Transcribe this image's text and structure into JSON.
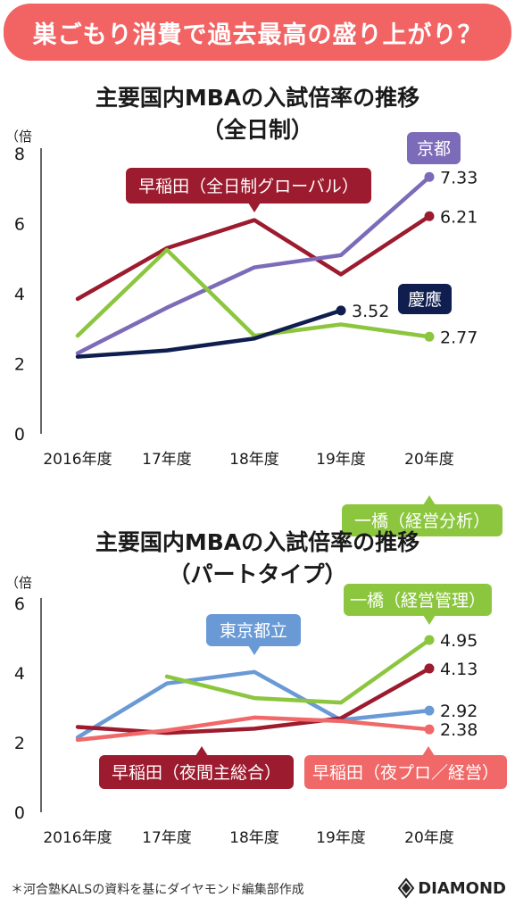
{
  "banner": "巣ごもり消費で過去最高の盛り上がり？",
  "source": "＊河合塾KALSの資料を基にダイヤモンド編集部作成",
  "brand": {
    "name": "DIAMOND",
    "icon": "diamond-logo-icon"
  },
  "chart_data": [
    {
      "type": "line",
      "title": "主要国内MBAの入試倍率の推移",
      "subtitle": "（全日制）",
      "y_unit": "（倍",
      "ylim": [
        0,
        8
      ],
      "yticks": [
        0,
        2,
        4,
        6,
        8
      ],
      "categories": [
        "2016年度",
        "17年度",
        "18年度",
        "19年度",
        "20年度"
      ],
      "grid": false,
      "series": [
        {
          "name": "早稲田（全日制グローバル）",
          "color": "#9c1b2e",
          "values": [
            3.85,
            5.3,
            6.1,
            4.55,
            6.21
          ],
          "end_label": "6.21"
        },
        {
          "name": "京都",
          "color": "#7c6bb8",
          "values": [
            2.3,
            3.6,
            4.75,
            5.1,
            7.33
          ],
          "end_label": "7.33"
        },
        {
          "name": "一橋（経営分析）",
          "color": "#8cc63f",
          "values": [
            2.8,
            5.25,
            2.8,
            3.12,
            2.77
          ],
          "end_label": "2.77"
        },
        {
          "name": "慶應",
          "color": "#0f1e4f",
          "values": [
            2.2,
            2.38,
            2.72,
            3.52,
            null
          ],
          "end_label": "3.52"
        }
      ]
    },
    {
      "type": "line",
      "title": "主要国内MBAの入試倍率の推移",
      "subtitle": "（パートタイプ）",
      "y_unit": "（倍",
      "ylim": [
        0,
        6
      ],
      "yticks": [
        0,
        2,
        4,
        6
      ],
      "categories": [
        "2016年度",
        "17年度",
        "18年度",
        "19年度",
        "20年度"
      ],
      "grid": false,
      "series": [
        {
          "name": "東京都立",
          "color": "#6a9ad6",
          "values": [
            2.15,
            3.7,
            4.03,
            2.65,
            2.92
          ],
          "end_label": "2.92"
        },
        {
          "name": "一橋（経営管理）",
          "color": "#8cc63f",
          "values": [
            null,
            3.9,
            3.28,
            3.15,
            4.95
          ],
          "end_label": "4.95"
        },
        {
          "name": "早稲田（夜間主総合）",
          "color": "#9c1b2e",
          "values": [
            2.45,
            2.28,
            2.4,
            2.7,
            4.13
          ],
          "end_label": "4.13"
        },
        {
          "name": "早稲田（夜プロ／経営）",
          "color": "#f06868",
          "values": [
            2.08,
            2.35,
            2.72,
            2.62,
            2.38
          ],
          "end_label": "2.38"
        }
      ]
    }
  ]
}
